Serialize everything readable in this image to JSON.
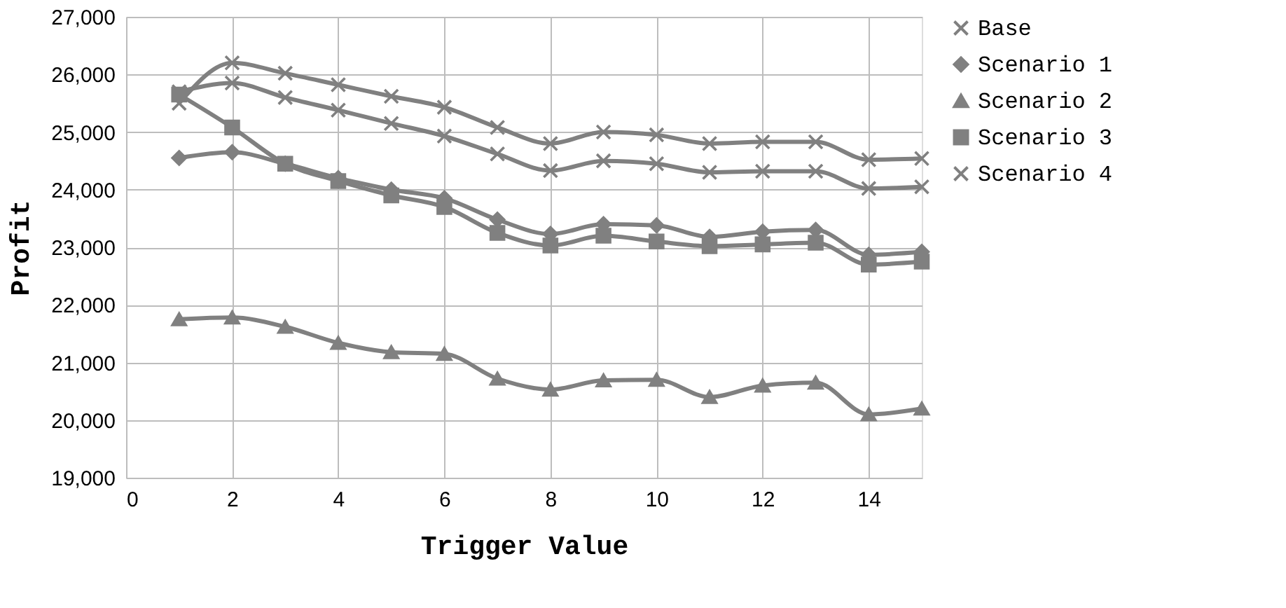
{
  "chart_data": {
    "type": "line",
    "xlabel": "Trigger Value",
    "ylabel": "Profit",
    "x": [
      1,
      2,
      3,
      4,
      5,
      6,
      7,
      8,
      9,
      10,
      11,
      12,
      13,
      14,
      15
    ],
    "xlim": [
      0,
      15
    ],
    "xticks": [
      0,
      2,
      4,
      6,
      8,
      10,
      12,
      14
    ],
    "ylim": [
      19000,
      27000
    ],
    "yticks": [
      {
        "value": 19000,
        "label": "19,000"
      },
      {
        "value": 20000,
        "label": "20,000"
      },
      {
        "value": 21000,
        "label": "21,000"
      },
      {
        "value": 22000,
        "label": "22,000"
      },
      {
        "value": 23000,
        "label": "23,000"
      },
      {
        "value": 24000,
        "label": "24,000"
      },
      {
        "value": 25000,
        "label": "25,000"
      },
      {
        "value": 26000,
        "label": "26,000"
      },
      {
        "value": 27000,
        "label": "27,000"
      }
    ],
    "grid": true,
    "legend": "right",
    "series": [
      {
        "name": "Base",
        "color": "#808080",
        "marker": "cross",
        "values": [
          25700,
          25850,
          25600,
          25380,
          25150,
          24930,
          24620,
          24330,
          24500,
          24450,
          24300,
          24320,
          24320,
          24020,
          24050
        ]
      },
      {
        "name": "Scenario 1",
        "color": "#808080",
        "marker": "diamond",
        "values": [
          24550,
          24650,
          24450,
          24200,
          24000,
          23850,
          23480,
          23230,
          23400,
          23380,
          23180,
          23270,
          23300,
          22870,
          22920
        ]
      },
      {
        "name": "Scenario 2",
        "color": "#808080",
        "marker": "triangle",
        "values": [
          21750,
          21780,
          21620,
          21340,
          21180,
          21150,
          20720,
          20530,
          20690,
          20700,
          20400,
          20600,
          20650,
          20100,
          20200
        ]
      },
      {
        "name": "Scenario 3",
        "color": "#808080",
        "marker": "square",
        "values": [
          25650,
          25080,
          24450,
          24150,
          23900,
          23700,
          23250,
          23030,
          23200,
          23100,
          23020,
          23050,
          23080,
          22700,
          22750
        ]
      },
      {
        "name": "Scenario 4",
        "color": "#808080",
        "marker": "cross",
        "values": [
          25500,
          26200,
          26020,
          25820,
          25620,
          25430,
          25080,
          24800,
          25000,
          24950,
          24800,
          24830,
          24830,
          24520,
          24540
        ]
      }
    ]
  }
}
